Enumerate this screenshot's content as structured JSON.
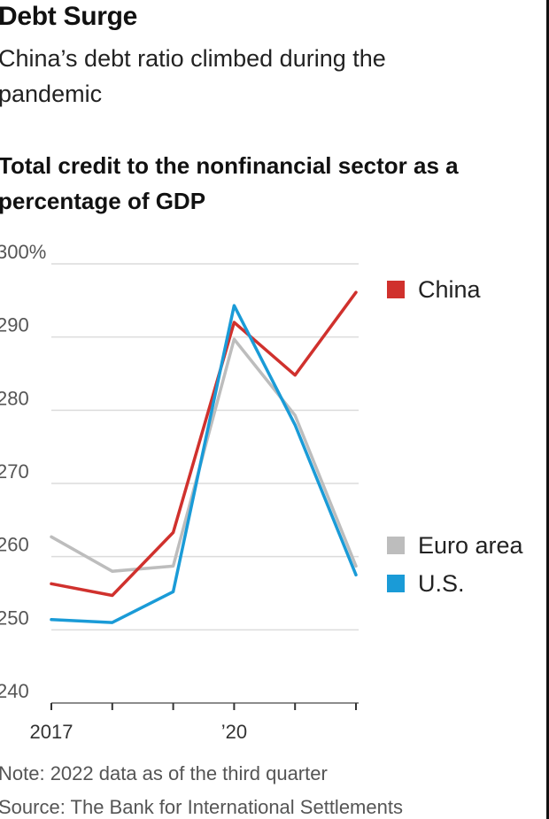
{
  "header": {
    "title": "Debt Surge",
    "subtitle": "China’s debt ratio climbed during the pandemic",
    "chart_heading": "Total credit to the nonfinancial sector as a percentage of GDP"
  },
  "footer": {
    "note": "Note: 2022 data as of the third quarter",
    "source": "Source: The Bank for International Settlements"
  },
  "chart_data": {
    "type": "line",
    "title": "Total credit to the nonfinancial sector as a percentage of GDP",
    "x": [
      2017,
      2018,
      2019,
      2020,
      2021,
      2022
    ],
    "x_tick_labels": [
      "2017",
      "",
      "",
      "’20",
      "",
      ""
    ],
    "y_tick_labels": [
      "300%",
      "290",
      "280",
      "270",
      "260",
      "250",
      "240"
    ],
    "ylim": [
      240,
      300
    ],
    "grid": true,
    "legend_position": "right",
    "series": [
      {
        "name": "China",
        "color": "#d0312d",
        "values": [
          256.3,
          254.7,
          263.3,
          292.0,
          284.8,
          296.1
        ]
      },
      {
        "name": "Euro area",
        "color": "#bdbdbd",
        "values": [
          262.7,
          258.0,
          258.7,
          289.7,
          279.3,
          258.7
        ]
      },
      {
        "name": "U.S.",
        "color": "#1a9bd7",
        "values": [
          251.4,
          251.0,
          255.2,
          294.3,
          278.0,
          257.5
        ]
      }
    ]
  }
}
